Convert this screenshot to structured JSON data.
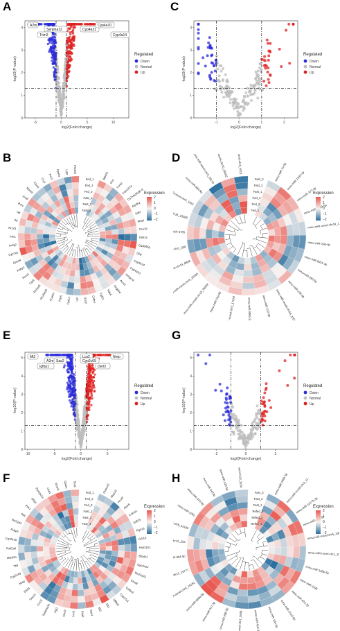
{
  "panels": {
    "A": {
      "letter": "A",
      "type": "volcano",
      "xlabel": "log2(Fold change)",
      "ylabel": "-log10(P-value)",
      "xticks": [
        "-5",
        "0",
        "5",
        "10"
      ],
      "yticks": [
        "0",
        "1",
        "2",
        "3",
        "4"
      ],
      "legend": {
        "title": "Regulated",
        "items": [
          "Down",
          "Normal",
          "Up"
        ]
      },
      "callouts": [
        "A2m",
        "Serpina12",
        "Trim2",
        "Cyp4a31",
        "Cyp4a10",
        "Cyp4a14"
      ]
    },
    "B": {
      "letter": "B",
      "type": "circular-heatmap",
      "legend": {
        "title": "Expression",
        "ticks": [
          "2",
          "1",
          "0",
          "−1",
          "−2"
        ]
      },
      "track_labels": [
        "Fast_3",
        "Fast_2",
        "Fast_1",
        "Fed_3",
        "Fed_2",
        "Fed_1"
      ],
      "gene_labels": [
        "Btbd11",
        "Des",
        "Tnnt2",
        "Fam107a",
        "D17H6S56E-5",
        "Atp2b2",
        "Sdhl",
        "Mrap",
        "Ces1d",
        "Klhl13",
        "Gadd45g",
        "Dbp",
        "Cyp4a14",
        "Cyp4a10",
        "Hmgcs2",
        "Acot1",
        "Angptl4",
        "Pdk4",
        "Fgf21",
        "Cidea",
        "Ucp2",
        "Lpl",
        "Cpt1a",
        "Plin5",
        "Acadm",
        "Slc25a20",
        "Ehhadh",
        "Cpt2",
        "Acox1",
        "Fabp1",
        "Apoa4",
        "Cyp7a1",
        "Insig2",
        "Per1",
        "Nr1d1",
        "Tef",
        "Hlf",
        "Rorc",
        "Arntl",
        "Npas2",
        "Clock",
        "Cry1",
        "Per3",
        "Ppara",
        "Lipe",
        "Pnpla2"
      ]
    },
    "C": {
      "letter": "C",
      "type": "volcano",
      "xlabel": "log2(Fold change)",
      "ylabel": "-log10(P-value)",
      "xticks": [
        "-1",
        "0",
        "1",
        "2"
      ],
      "yticks": [
        "0",
        "1",
        "2",
        "3",
        "4"
      ],
      "legend": {
        "title": "Regulated",
        "items": [
          "Down",
          "Normal",
          "Up"
        ]
      }
    },
    "D": {
      "letter": "D",
      "type": "circular-heatmap",
      "legend": {
        "title": "Expression",
        "ticks": [
          "2",
          "1",
          "0",
          "−1",
          "−2"
        ]
      },
      "track_labels": [
        "Fed_1",
        "Fed_2",
        "Fed_3",
        "Fast_1",
        "Fast_2",
        "Fast_3"
      ],
      "gene_labels": [
        "mmu-miR-7a-5p",
        "mmu-miR-1933-3p",
        "mmu-miR-377-3p",
        "mmu-miR-6899-5p",
        "mmu-miR-novel-chr19_10771",
        "mmu-miR-19a-3p",
        "mmu-miR-6911-3p",
        "mmu-miR-292-5p",
        "mmu-miR-139-3p",
        "mmu-miR-novel-chr14_11089",
        "mmu-miR-122-3p",
        "mmu-miR-3065-3p",
        "mmu-miR-novel-chr2_17679",
        "mmu-miR-18a-5p",
        "mmu-miR-novel-chr10_38269",
        "mmu-miR-novel-chr4_26186",
        "mmu-miR-novel-chr14_8838",
        "mmu-miR-novel-chr1_320",
        "mmu-miR-3785",
        "mmu-miR-novel-chr16_13389",
        "mmu-miR-novel-chr3_1163",
        "mmu-miR-684-5p",
        "mmu-miR-novel-chr5_28170",
        "mmu-miR-novel-chr10_28102",
        "mmu-miR-novel-chr6_9113"
      ]
    },
    "E": {
      "letter": "E",
      "type": "volcano",
      "xlabel": "log2(Fold change)",
      "ylabel": "-log10(P-value)",
      "xticks": [
        "-10",
        "-5",
        "0",
        "5"
      ],
      "yticks": [
        "0",
        "1",
        "2",
        "3",
        "4",
        "5"
      ],
      "legend": {
        "title": "Regulated",
        "items": [
          "Down",
          "Normal",
          "Up"
        ]
      },
      "callouts": [
        "Mt2",
        "A2m",
        "Igfbp1",
        "Saa2",
        "Lcn2",
        "Derl3",
        "Nrep",
        "Cyp2c69"
      ]
    },
    "F": {
      "letter": "F",
      "type": "circular-heatmap",
      "legend": {
        "title": "Expression",
        "ticks": [
          "2",
          "1",
          "0",
          "−1",
          "−2"
        ]
      },
      "track_labels": [
        "Fast_3",
        "Fast_2",
        "Fast_1",
        "Fed_3",
        "Fed_2",
        "Fed_1"
      ],
      "gene_labels": [
        "Onecut1",
        "Mup19",
        "Acot3",
        "Alox5",
        "Col1a1",
        "Gdf15",
        "Rgs16",
        "Grb10",
        "Hsd11b1",
        "Btbd11",
        "Cyp4a14",
        "Slc22a29",
        "Chst8",
        "Col6a3",
        "Cyp17a1",
        "Igfbp2",
        "Mt1",
        "Mt2",
        "Saa1",
        "Saa2",
        "Lcn2",
        "Orm2",
        "Fgl1",
        "Serpina3n",
        "Cxcl1",
        "Socs3",
        "Derl3",
        "Nrep",
        "Cyp2c69",
        "Tff3",
        "Mfsd2a",
        "Sult2a8",
        "Cyp2b10",
        "Fkbp5",
        "Tsc22d3",
        "Sds",
        "Pck1",
        "G6pc",
        "Ppargc1a",
        "Ucp1",
        "Elovl3",
        "Gpam",
        "Scd1"
      ]
    },
    "G": {
      "letter": "G",
      "type": "volcano",
      "xlabel": "log2(Fold change)",
      "ylabel": "-log10(P-value)",
      "xticks": [
        "-2",
        "0",
        "2"
      ],
      "yticks": [
        "0",
        "1",
        "2",
        "3",
        "4",
        "5"
      ],
      "legend": {
        "title": "Regulated",
        "items": [
          "Down",
          "Normal",
          "Up"
        ]
      }
    },
    "H": {
      "letter": "H",
      "type": "circular-heatmap",
      "legend": {
        "title": "Expression",
        "ticks": [
          "2",
          "1",
          "0",
          "−1",
          "−2"
        ]
      },
      "track_labels": [
        "Refed_1",
        "Refed_2",
        "Refed_3",
        "Fast_1",
        "Fast_2",
        "Fast_3"
      ],
      "gene_labels": [
        "mmu-miR-200b-5p",
        "mmu-miR-novel-chr2_11",
        "mmu-miR-1217b-3p",
        "mmu-miR-298-5p",
        "mmu-miR-novel-chr5_33657",
        "mmu-miR-novel-chr1_107",
        "mmu-miR-135b-5p",
        "mmu-miR-1195",
        "mmu-miR-421-3p",
        "mmu-miR-3102-5p",
        "mmu-miR-184-3p",
        "mmu-miR-410-3p",
        "mmu-miR-novel-chr1_5509",
        "mmu-miR-296-5p",
        "mmu-miR-377-3p",
        "mmu-miR-669a-5p",
        "mmu-miR-novel-chr6_19152",
        "mmu-miR-novel-chr12_16777",
        "mmu-miR-964-5p",
        "mmu-miR-novel-chr12_253",
        "mmu-miR-novel-chr8_12165",
        "mmu-miR-1291",
        "mmu-miR-370-3p",
        "mmu-miR-3473b",
        "mmu-miR-323-5p",
        "mmu-miR-novel-chr13_3154"
      ]
    }
  },
  "colors": {
    "down": "#2b2bdc",
    "normal": "#bdbdbd",
    "up": "#e02020",
    "heat_high": "#e8564e",
    "heat_mid": "#f6f2f0",
    "heat_low": "#2b6f9e"
  }
}
